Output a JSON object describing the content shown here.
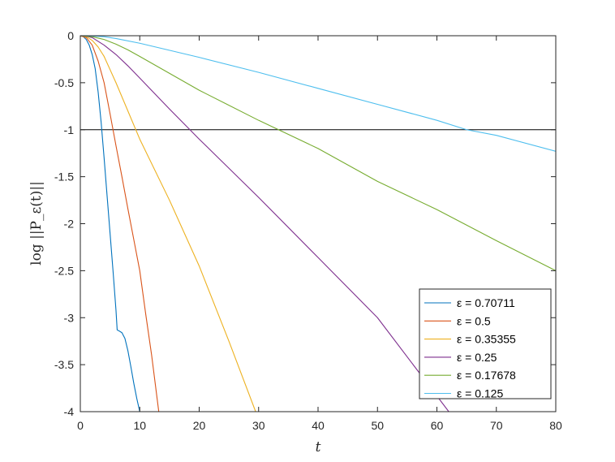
{
  "chart_data": {
    "type": "line",
    "xlabel": "t",
    "ylabel": "log ||P_ε(t)||",
    "xlim": [
      0,
      80
    ],
    "ylim": [
      -4,
      0
    ],
    "x_ticks": [
      "0",
      "10",
      "20",
      "30",
      "40",
      "50",
      "60",
      "70",
      "80"
    ],
    "y_ticks": [
      "0",
      "-0.5",
      "-1",
      "-1.5",
      "-2",
      "-2.5",
      "-3",
      "-3.5",
      "-4"
    ],
    "grid": false,
    "legend_position": "bottom-right",
    "reference_line": {
      "y": -1,
      "color": "#000000"
    },
    "series": [
      {
        "name": "ε = 0.70711",
        "color": "#0072BD",
        "x": [
          0,
          0.5,
          1,
          1.5,
          2,
          2.5,
          3,
          3.5,
          4,
          4.5,
          5,
          5.5,
          6,
          6.2,
          6.5,
          7,
          7.5,
          8,
          8.5,
          9,
          9.5,
          10
        ],
        "y": [
          0,
          -0.01,
          -0.04,
          -0.1,
          -0.2,
          -0.35,
          -0.6,
          -0.92,
          -1.3,
          -1.7,
          -2.1,
          -2.5,
          -2.92,
          -3.13,
          -3.14,
          -3.16,
          -3.22,
          -3.35,
          -3.52,
          -3.7,
          -3.86,
          -4.0
        ]
      },
      {
        "name": "ε = 0.5",
        "color": "#D95319",
        "x": [
          0,
          1,
          2,
          3,
          4,
          5,
          6,
          7,
          8,
          9,
          10,
          11,
          12,
          13.2
        ],
        "y": [
          0,
          -0.02,
          -0.1,
          -0.27,
          -0.5,
          -0.83,
          -1.17,
          -1.5,
          -1.84,
          -2.17,
          -2.5,
          -2.96,
          -3.4,
          -4.0
        ]
      },
      {
        "name": "ε = 0.35355",
        "color": "#EDB120",
        "x": [
          0,
          1,
          2,
          3,
          4,
          5,
          6,
          8,
          10,
          15,
          20,
          25,
          29.5
        ],
        "y": [
          0,
          -0.01,
          -0.05,
          -0.12,
          -0.22,
          -0.36,
          -0.5,
          -0.8,
          -1.1,
          -1.75,
          -2.45,
          -3.25,
          -4.0
        ]
      },
      {
        "name": "ε = 0.25",
        "color": "#7E2F8E",
        "x": [
          0,
          1,
          2,
          4,
          6,
          8,
          10,
          15,
          20,
          30,
          40,
          50,
          62
        ],
        "y": [
          0,
          -0.005,
          -0.02,
          -0.1,
          -0.2,
          -0.32,
          -0.45,
          -0.78,
          -1.1,
          -1.72,
          -2.36,
          -3.0,
          -4.0
        ]
      },
      {
        "name": "ε = 0.17678",
        "color": "#77AC30",
        "x": [
          0,
          2,
          4,
          6,
          8,
          10,
          20,
          30,
          40,
          50,
          60,
          70,
          80
        ],
        "y": [
          0,
          -0.01,
          -0.04,
          -0.09,
          -0.15,
          -0.22,
          -0.58,
          -0.9,
          -1.2,
          -1.55,
          -1.85,
          -2.18,
          -2.5
        ]
      },
      {
        "name": "ε = 0.125",
        "color": "#4DBEEE",
        "x": [
          0,
          2,
          4,
          6,
          10,
          20,
          30,
          40,
          50,
          60,
          65,
          70,
          80
        ],
        "y": [
          0,
          -0.003,
          -0.01,
          -0.03,
          -0.08,
          -0.23,
          -0.39,
          -0.56,
          -0.73,
          -0.9,
          -1.0,
          -1.06,
          -1.23
        ]
      }
    ]
  }
}
